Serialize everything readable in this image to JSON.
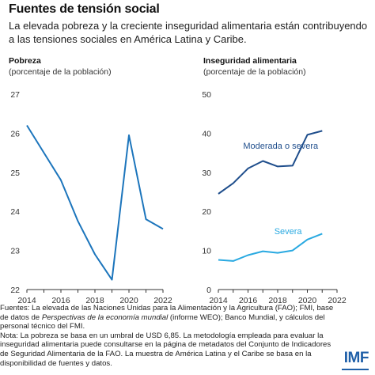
{
  "header": {
    "title": "Fuentes de tensión social",
    "subtitle": "La elevada pobreza y la creciente inseguridad alimentaria están contribuyendo a las tensiones sociales en América Latina y Caribe."
  },
  "panels": {
    "left": {
      "title": "Pobreza",
      "unit": "(porcentaje de la población)"
    },
    "right": {
      "title": "Inseguridad alimentaria",
      "unit": "(porcentaje de la población)"
    }
  },
  "footnotes": {
    "sources_prefix": "Fuentes: La elevada de las Naciones Unidas para la Alimentación y la Agricultura (FAO); FMI, base de datos de ",
    "sources_italic": "Perspectivas de la economía mundial",
    "sources_suffix": " (informe WEO); Banco Mundial, y cálculos del personal técnico del FMI.",
    "note": "Nota: La pobreza se basa en un umbral de USD 6,85. La metodología empleada para evaluar la inseguridad alimentaria puede consultarse en la página de metadatos del Conjunto de Indicadores de Seguridad Alimentaria de la FAO. La muestra de América Latina y el Caribe se basa en la disponibilidad de fuentes y datos."
  },
  "logo": "IMF",
  "colors": {
    "poverty_line": "#1c75bc",
    "moderate_line": "#1f4e8c",
    "severe_line": "#29a9e1",
    "axis": "#333333"
  },
  "chart_data": [
    {
      "type": "line",
      "title": "Pobreza",
      "ylabel": "(porcentaje de la población)",
      "x": [
        2014,
        2015,
        2016,
        2017,
        2018,
        2019,
        2020,
        2021,
        2022
      ],
      "series": [
        {
          "values": [
            26.2,
            25.5,
            24.8,
            23.75,
            22.9,
            22.25,
            25.95,
            23.8,
            23.55
          ]
        }
      ],
      "xlim": [
        2014,
        2022
      ],
      "ylim": [
        22,
        27
      ],
      "xticks": [
        2014,
        2016,
        2018,
        2020,
        2022
      ],
      "yticks": [
        22,
        23,
        24,
        25,
        26,
        27
      ],
      "grid": false
    },
    {
      "type": "line",
      "title": "Inseguridad alimentaria",
      "ylabel": "(porcentaje de la población)",
      "x": [
        2014,
        2015,
        2016,
        2017,
        2018,
        2019,
        2020,
        2021
      ],
      "series": [
        {
          "name": "Moderada o severa",
          "values": [
            24.5,
            27.2,
            31.0,
            32.9,
            31.5,
            31.7,
            39.6,
            40.6
          ]
        },
        {
          "name": "Severa",
          "values": [
            7.6,
            7.3,
            8.8,
            9.8,
            9.4,
            10.0,
            12.8,
            14.3
          ]
        }
      ],
      "xlim": [
        2014,
        2022
      ],
      "ylim": [
        0,
        50
      ],
      "xticks": [
        2014,
        2016,
        2018,
        2020,
        2022
      ],
      "yticks": [
        0,
        10,
        20,
        30,
        40,
        50
      ],
      "grid": false
    }
  ]
}
